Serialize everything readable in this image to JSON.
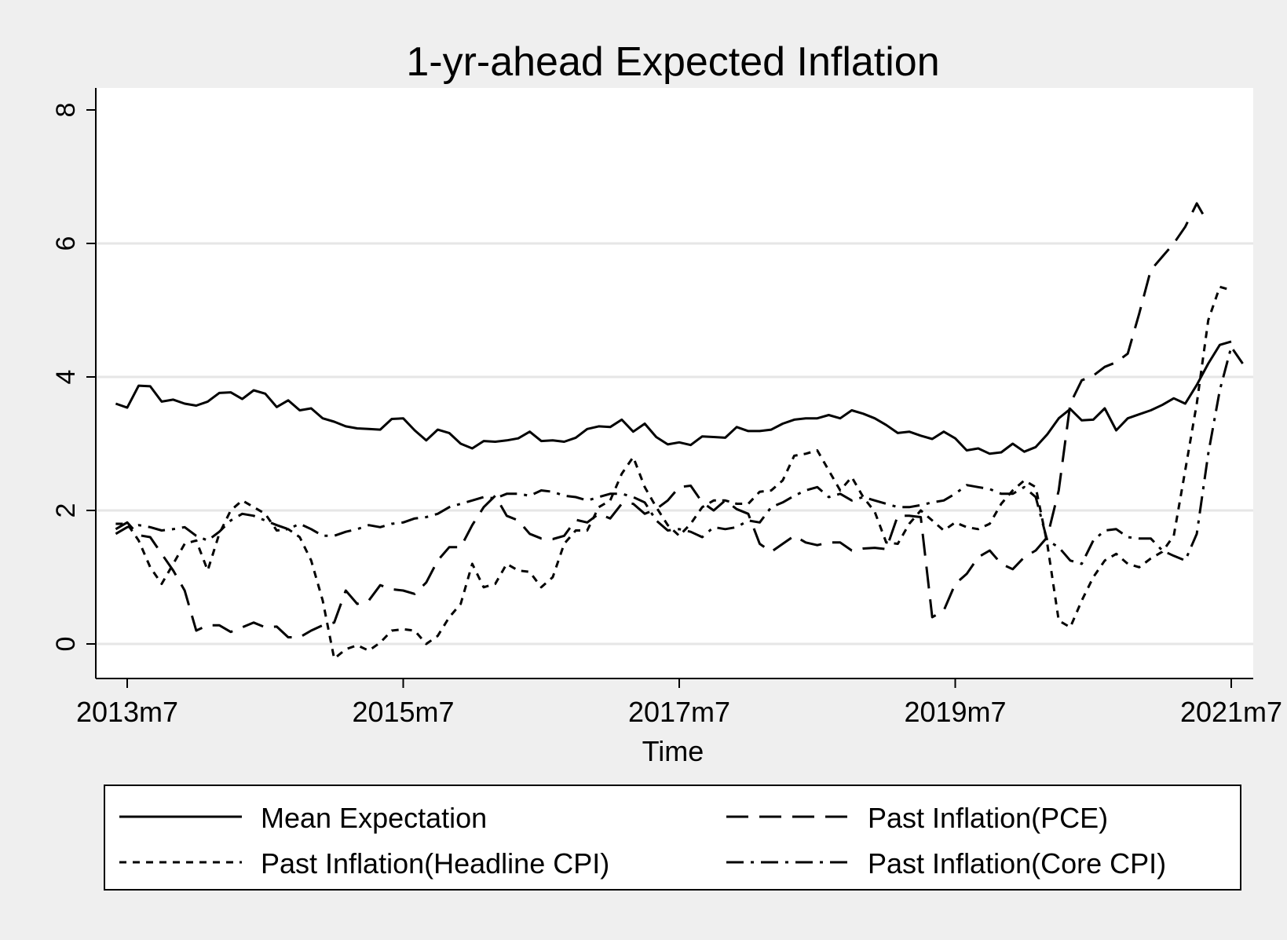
{
  "chart_data": {
    "type": "line",
    "title": "1-yr-ahead Expected Inflation",
    "xlabel": "Time",
    "ylabel": "",
    "ylim": [
      -0.5,
      8.3
    ],
    "yticks": [
      0,
      2,
      4,
      6,
      8
    ],
    "ytick_labels": [
      "0",
      "2",
      "4",
      "6",
      "8"
    ],
    "xticks": [
      "2013-07",
      "2015-07",
      "2017-07",
      "2019-07",
      "2021-07"
    ],
    "xtick_labels": [
      "2013m7",
      "2015m7",
      "2017m7",
      "2019m7",
      "2021m7"
    ],
    "x_start": "2013-06",
    "grid": "horizontal",
    "legend": "bottom",
    "series": [
      {
        "name": "Mean Expectation",
        "dash": "solid",
        "values": [
          3.6,
          3.54,
          3.87,
          3.86,
          3.63,
          3.66,
          3.6,
          3.57,
          3.63,
          3.76,
          3.77,
          3.67,
          3.8,
          3.75,
          3.55,
          3.65,
          3.5,
          3.53,
          3.38,
          3.33,
          3.26,
          3.23,
          3.22,
          3.21,
          3.37,
          3.38,
          3.2,
          3.05,
          3.21,
          3.16,
          3.0,
          2.93,
          3.04,
          3.03,
          3.05,
          3.08,
          3.18,
          3.04,
          3.05,
          3.03,
          3.09,
          3.22,
          3.26,
          3.25,
          3.36,
          3.18,
          3.3,
          3.1,
          2.99,
          3.02,
          2.98,
          3.11,
          3.1,
          3.09,
          3.25,
          3.19,
          3.19,
          3.21,
          3.3,
          3.36,
          3.38,
          3.38,
          3.43,
          3.38,
          3.5,
          3.45,
          3.38,
          3.28,
          3.16,
          3.18,
          3.12,
          3.07,
          3.18,
          3.08,
          2.9,
          2.93,
          2.85,
          2.87,
          3.0,
          2.88,
          2.95,
          3.14,
          3.38,
          3.52,
          3.35,
          3.36,
          3.53,
          3.2,
          3.38,
          3.44,
          3.5,
          3.58,
          3.68,
          3.6,
          3.88,
          4.2,
          4.48,
          4.53
        ]
      },
      {
        "name": "Past Inflation(PCE)",
        "dash": "long",
        "values": [
          1.72,
          1.82,
          1.63,
          1.6,
          1.35,
          1.1,
          0.8,
          0.2,
          0.28,
          0.28,
          0.18,
          0.25,
          0.32,
          0.25,
          0.26,
          0.1,
          0.1,
          0.2,
          0.28,
          0.32,
          0.8,
          0.6,
          0.65,
          0.88,
          0.82,
          0.8,
          0.75,
          0.92,
          1.25,
          1.45,
          1.45,
          1.78,
          2.05,
          2.22,
          1.92,
          1.85,
          1.65,
          1.58,
          1.57,
          1.62,
          1.86,
          1.82,
          1.95,
          1.88,
          2.1,
          2.1,
          1.95,
          2.02,
          2.15,
          2.35,
          2.37,
          2.12,
          2.0,
          2.15,
          2.02,
          1.95,
          1.5,
          1.38,
          1.5,
          1.62,
          1.52,
          1.48,
          1.52,
          1.52,
          1.4,
          1.43,
          1.44,
          1.42,
          1.92,
          1.92,
          1.9,
          0.4,
          0.5,
          0.9,
          1.05,
          1.3,
          1.4,
          1.2,
          1.12,
          1.3,
          1.4,
          1.6,
          2.3,
          3.6,
          3.95,
          4.02,
          4.15,
          4.22,
          4.35,
          4.95,
          5.6,
          5.8,
          6.0,
          6.25,
          6.6,
          6.3
        ]
      },
      {
        "name": "Past Inflation(Headline CPI)",
        "dash": "short",
        "values": [
          1.8,
          1.8,
          1.55,
          1.15,
          0.9,
          1.2,
          1.5,
          1.55,
          1.1,
          1.65,
          2.0,
          2.15,
          2.05,
          1.95,
          1.7,
          1.72,
          1.6,
          1.25,
          0.65,
          -0.22,
          -0.08,
          -0.02,
          -0.1,
          0.02,
          0.2,
          0.22,
          0.2,
          0.0,
          0.12,
          0.4,
          0.6,
          1.2,
          0.85,
          0.9,
          1.2,
          1.1,
          1.08,
          0.85,
          1.0,
          1.5,
          1.7,
          1.7,
          2.05,
          2.15,
          2.55,
          2.8,
          2.35,
          2.05,
          1.78,
          1.62,
          1.8,
          2.05,
          2.15,
          2.15,
          2.1,
          2.1,
          2.28,
          2.3,
          2.45,
          2.82,
          2.85,
          2.9,
          2.6,
          2.3,
          2.5,
          2.2,
          1.98,
          1.52,
          1.5,
          1.8,
          2.0,
          1.85,
          1.7,
          1.82,
          1.75,
          1.72,
          1.8,
          2.1,
          2.3,
          2.45,
          2.35,
          1.5,
          0.35,
          0.25,
          0.65,
          1.0,
          1.25,
          1.35,
          1.2,
          1.15,
          1.28,
          1.38,
          1.62,
          2.6,
          3.6,
          4.85,
          5.35,
          5.3
        ]
      },
      {
        "name": "Past Inflation(Core CPI)",
        "dash": "dashdot",
        "values": [
          1.65,
          1.75,
          1.78,
          1.75,
          1.7,
          1.72,
          1.75,
          1.62,
          1.55,
          1.68,
          1.85,
          1.95,
          1.92,
          1.85,
          1.78,
          1.72,
          1.8,
          1.72,
          1.62,
          1.62,
          1.68,
          1.72,
          1.78,
          1.75,
          1.8,
          1.82,
          1.88,
          1.9,
          1.95,
          2.05,
          2.1,
          2.15,
          2.2,
          2.18,
          2.25,
          2.25,
          2.22,
          2.3,
          2.28,
          2.22,
          2.2,
          2.15,
          2.2,
          2.25,
          2.25,
          2.2,
          2.12,
          1.85,
          1.7,
          1.72,
          1.68,
          1.6,
          1.75,
          1.72,
          1.75,
          1.85,
          1.82,
          2.05,
          2.12,
          2.22,
          2.3,
          2.35,
          2.2,
          2.25,
          2.15,
          2.2,
          2.15,
          2.1,
          2.05,
          2.05,
          2.08,
          2.12,
          2.15,
          2.25,
          2.38,
          2.35,
          2.32,
          2.25,
          2.25,
          2.35,
          2.2,
          1.55,
          1.45,
          1.25,
          1.2,
          1.55,
          1.7,
          1.72,
          1.6,
          1.58,
          1.58,
          1.4,
          1.32,
          1.25,
          1.65,
          2.85,
          3.8,
          4.45,
          4.2
        ]
      }
    ],
    "series_start_offsets": [
      0,
      0,
      0,
      0
    ]
  }
}
